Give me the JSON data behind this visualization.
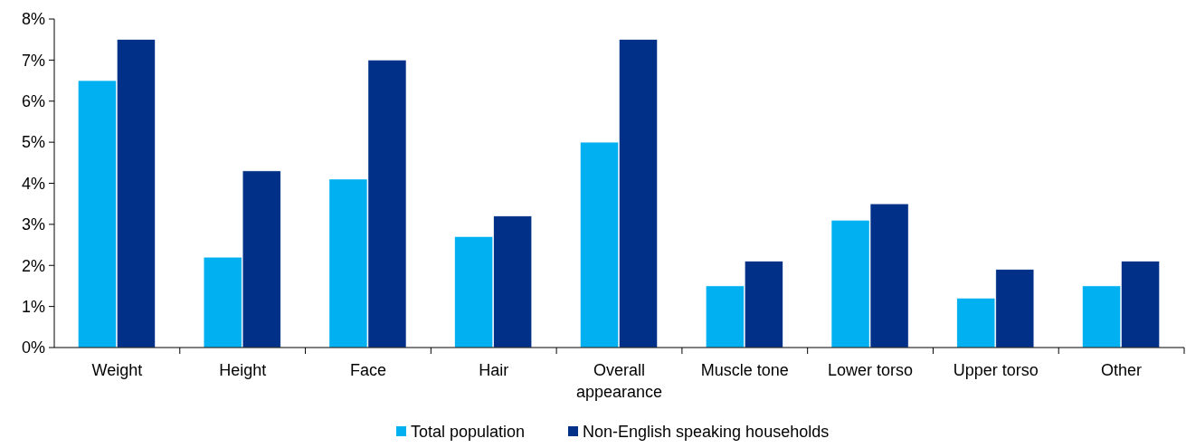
{
  "chart_data": {
    "type": "bar",
    "categories": [
      "Weight",
      "Height",
      "Face",
      "Hair",
      "Overall appearance",
      "Muscle tone",
      "Lower torso",
      "Upper torso",
      "Other"
    ],
    "series": [
      {
        "name": "Total population",
        "color": "#00b0f0",
        "values": [
          6.5,
          2.2,
          4.1,
          2.7,
          5.0,
          1.5,
          3.1,
          1.2,
          1.5
        ]
      },
      {
        "name": "Non-English speaking households",
        "color": "#003087",
        "values": [
          7.5,
          4.3,
          7.0,
          3.2,
          7.5,
          2.1,
          3.5,
          1.9,
          2.1
        ]
      }
    ],
    "ylim": [
      0,
      8
    ],
    "yticks": [
      {
        "value": 0,
        "label": "0%"
      },
      {
        "value": 1,
        "label": "1%"
      },
      {
        "value": 2,
        "label": "2%"
      },
      {
        "value": 3,
        "label": "3%"
      },
      {
        "value": 4,
        "label": "4%"
      },
      {
        "value": 5,
        "label": "5%"
      },
      {
        "value": 6,
        "label": "6%"
      },
      {
        "value": 7,
        "label": "7%"
      },
      {
        "value": 8,
        "label": "8%"
      }
    ],
    "grid": false,
    "legend": "bottom"
  }
}
